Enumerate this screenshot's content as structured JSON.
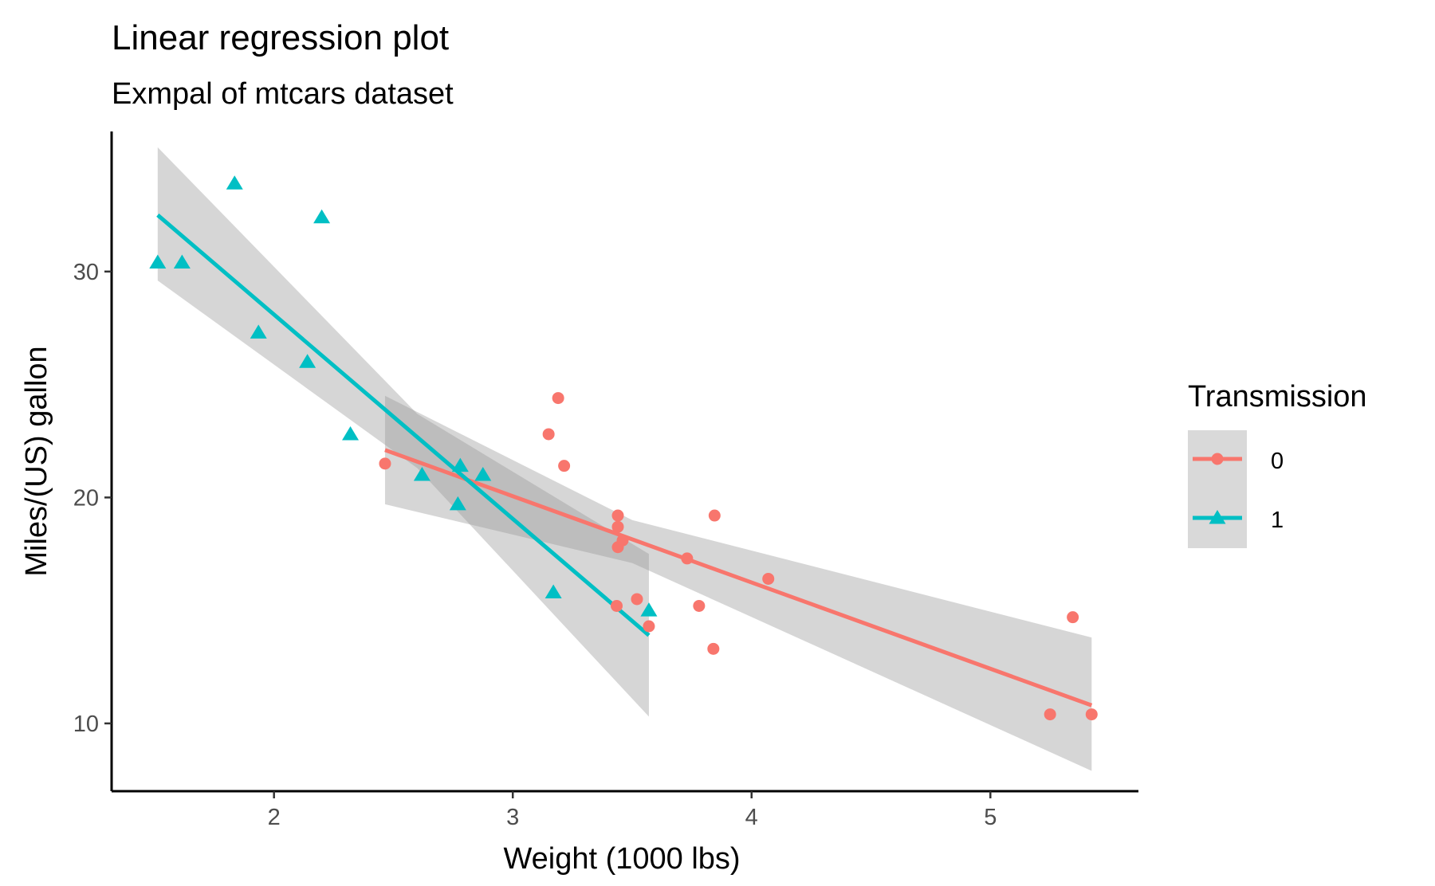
{
  "chart_data": {
    "type": "scatter",
    "title": "Linear regression plot",
    "subtitle": "Exmpal of mtcars dataset",
    "xlabel": "Weight (1000 lbs)",
    "ylabel": "Miles/(US) gallon",
    "xlim": [
      1.32,
      5.62
    ],
    "ylim": [
      7.0,
      36.2
    ],
    "xticks": [
      "2",
      "3",
      "4",
      "5"
    ],
    "xtick_values": [
      2,
      3,
      4,
      5
    ],
    "yticks": [
      "10",
      "20",
      "30"
    ],
    "ytick_values": [
      10,
      20,
      30
    ],
    "grid": false,
    "legend": {
      "title": "Transmission",
      "placement": "right",
      "entries": [
        "0",
        "1"
      ]
    },
    "series": [
      {
        "name": "0",
        "color": "#F8766D",
        "marker": "circle",
        "points": [
          {
            "x": 2.465,
            "y": 21.5
          },
          {
            "x": 3.15,
            "y": 22.8
          },
          {
            "x": 3.19,
            "y": 24.4
          },
          {
            "x": 3.215,
            "y": 21.4
          },
          {
            "x": 3.44,
            "y": 18.7
          },
          {
            "x": 3.44,
            "y": 19.2
          },
          {
            "x": 3.44,
            "y": 17.8
          },
          {
            "x": 3.435,
            "y": 15.2
          },
          {
            "x": 3.46,
            "y": 18.1
          },
          {
            "x": 3.52,
            "y": 15.5
          },
          {
            "x": 3.57,
            "y": 14.3
          },
          {
            "x": 3.73,
            "y": 17.3
          },
          {
            "x": 3.78,
            "y": 15.2
          },
          {
            "x": 3.84,
            "y": 13.3
          },
          {
            "x": 3.845,
            "y": 19.2
          },
          {
            "x": 4.07,
            "y": 16.4
          },
          {
            "x": 5.25,
            "y": 10.4
          },
          {
            "x": 5.345,
            "y": 14.7
          },
          {
            "x": 5.424,
            "y": 10.4
          }
        ],
        "fit": {
          "x": [
            2.465,
            5.424
          ],
          "y": [
            22.1,
            10.8
          ]
        },
        "band": {
          "x": [
            2.465,
            3.5,
            5.424
          ],
          "lower": [
            19.7,
            17.1,
            7.9
          ],
          "upper": [
            24.5,
            19.0,
            13.8
          ]
        }
      },
      {
        "name": "1",
        "color": "#00BFC4",
        "marker": "triangle",
        "points": [
          {
            "x": 1.513,
            "y": 30.4
          },
          {
            "x": 1.615,
            "y": 30.4
          },
          {
            "x": 1.835,
            "y": 33.9
          },
          {
            "x": 1.935,
            "y": 27.3
          },
          {
            "x": 2.14,
            "y": 26.0
          },
          {
            "x": 2.2,
            "y": 32.4
          },
          {
            "x": 2.32,
            "y": 22.8
          },
          {
            "x": 2.62,
            "y": 21.0
          },
          {
            "x": 2.77,
            "y": 19.7
          },
          {
            "x": 2.78,
            "y": 21.4
          },
          {
            "x": 2.875,
            "y": 21.0
          },
          {
            "x": 3.17,
            "y": 15.8
          },
          {
            "x": 3.57,
            "y": 15.0
          }
        ],
        "fit": {
          "x": [
            1.513,
            3.57
          ],
          "y": [
            32.5,
            13.9
          ]
        },
        "band": {
          "x": [
            1.513,
            2.6,
            3.57
          ],
          "lower": [
            29.6,
            21.3,
            10.3
          ],
          "upper": [
            35.5,
            23.7,
            17.5
          ]
        }
      }
    ]
  }
}
